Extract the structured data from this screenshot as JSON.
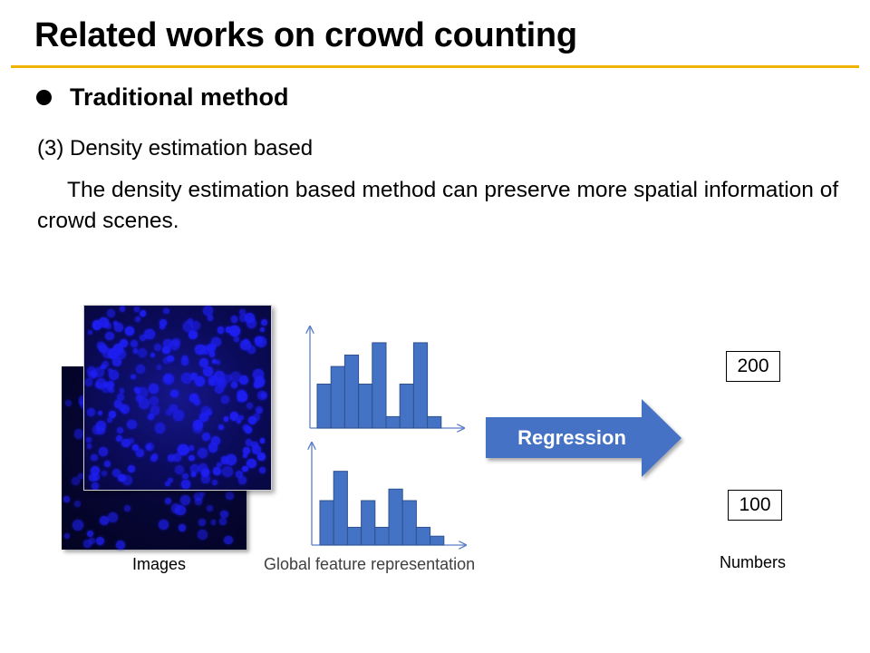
{
  "slide": {
    "title": "Related works on crowd counting",
    "bullet": "Traditional method",
    "subheading": "(3) Density estimation based",
    "paragraph": "The density estimation based method can preserve more spatial information of crowd scenes."
  },
  "figure": {
    "images_label": "Images",
    "features_label": "Global feature representation",
    "regression_label": "Regression",
    "numbers_label": "Numbers",
    "numbers": [
      "200",
      "100"
    ],
    "histograms": [
      {
        "values": [
          50,
          70,
          83,
          50,
          97,
          13,
          50,
          97,
          13
        ]
      },
      {
        "values": [
          50,
          83,
          20,
          50,
          20,
          63,
          50,
          20,
          10
        ]
      }
    ],
    "colors": {
      "accent_rule": "#f0b400",
      "bar_fill": "#4472c4",
      "bar_stroke": "#2f528f",
      "axis": "#5b7ec9",
      "arrow": "#4472c4",
      "crowd_dot": "#1e1ef0"
    },
    "icons": [
      "bullet-dot"
    ]
  }
}
